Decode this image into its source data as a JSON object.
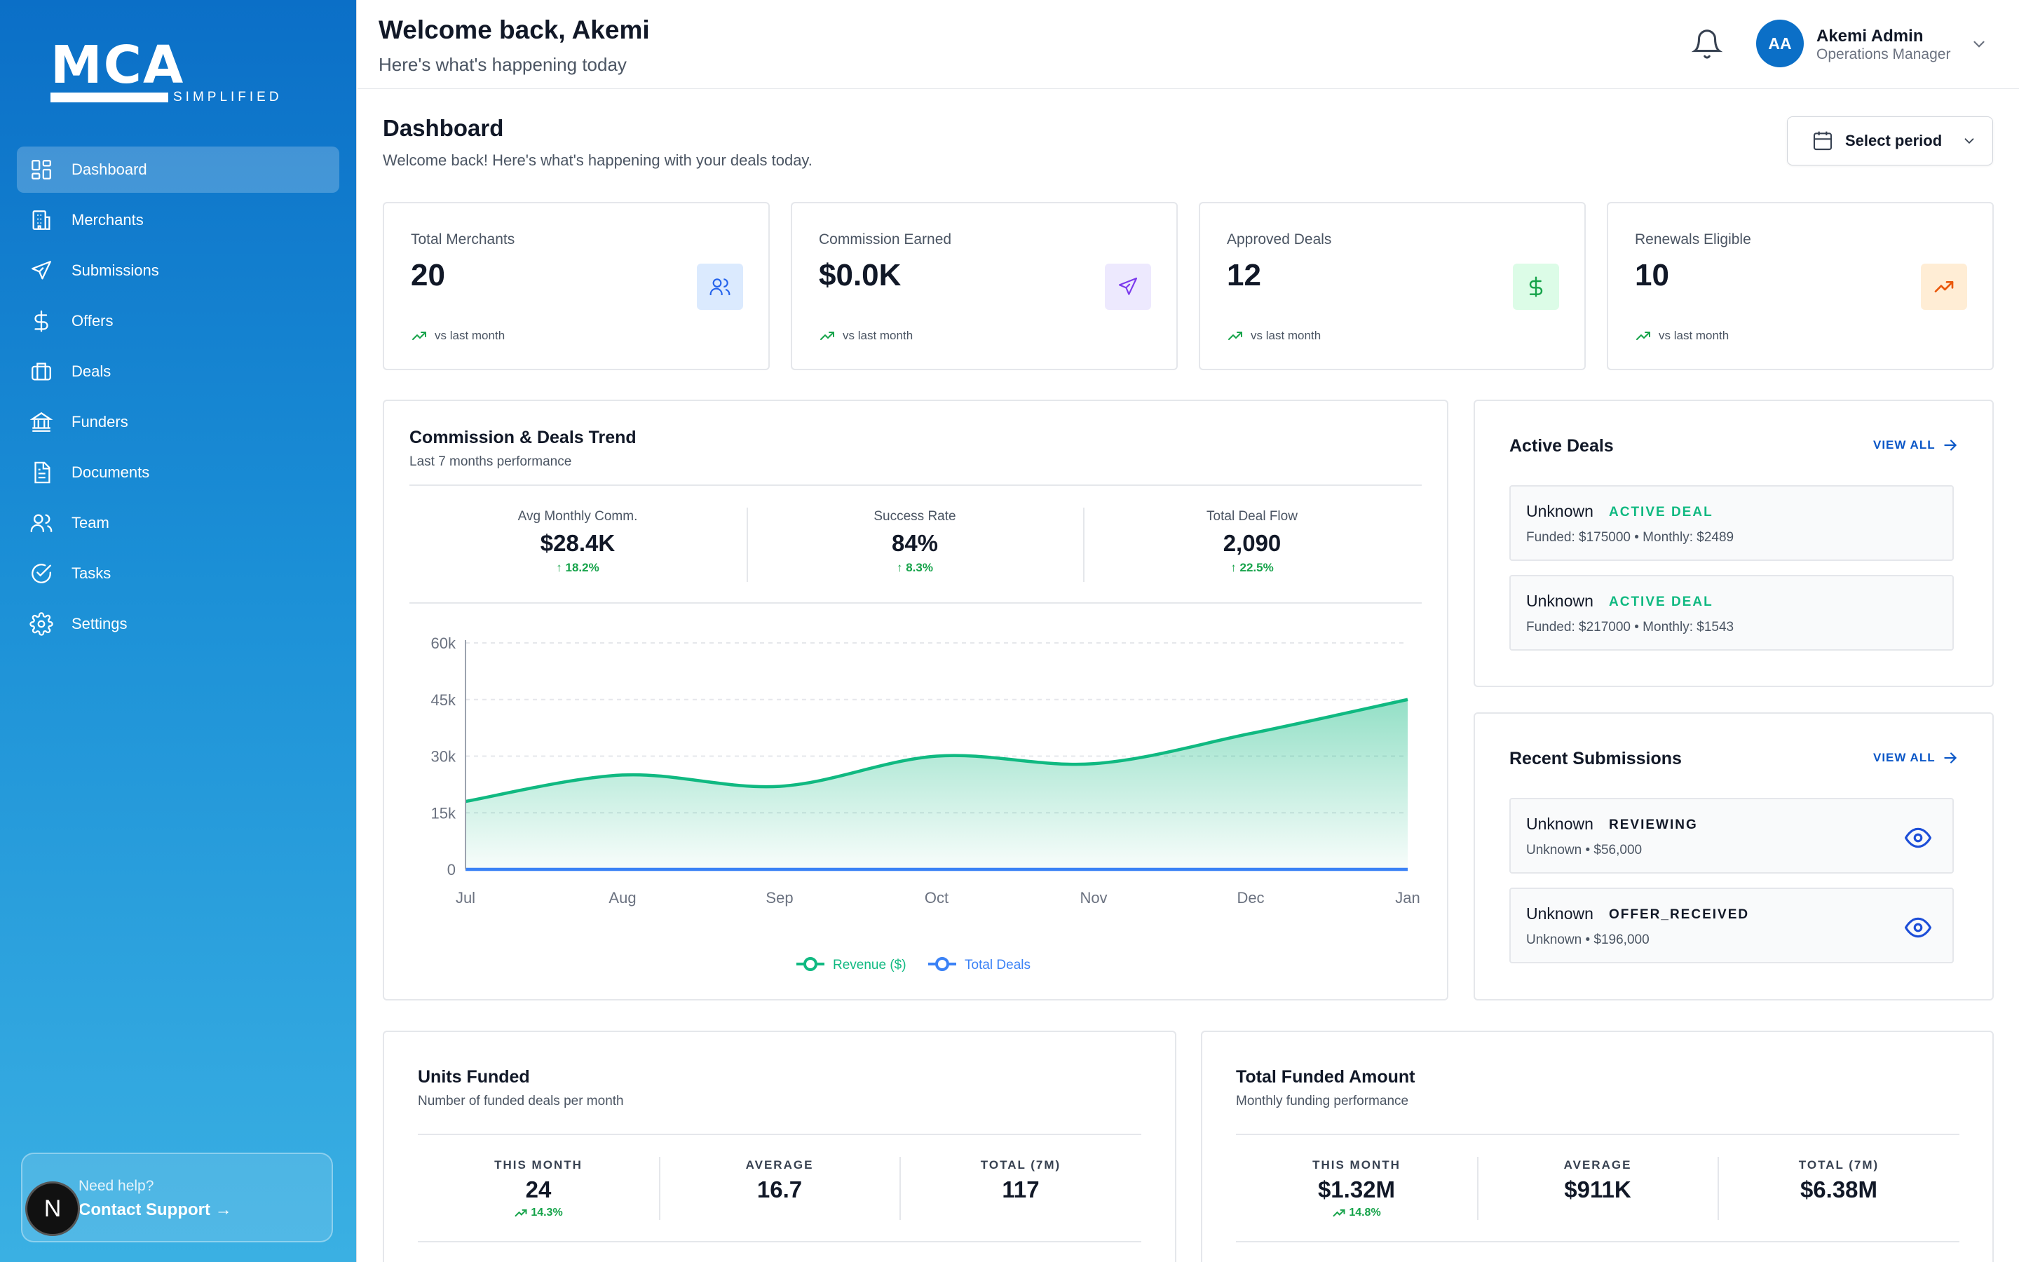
{
  "brand": {
    "name": "MCA",
    "tagline": "SIMPLIFIED"
  },
  "sidebar": {
    "items": [
      {
        "label": "Dashboard",
        "icon": "dashboard-icon",
        "active": true
      },
      {
        "label": "Merchants",
        "icon": "building-icon"
      },
      {
        "label": "Submissions",
        "icon": "send-icon"
      },
      {
        "label": "Offers",
        "icon": "dollar-icon"
      },
      {
        "label": "Deals",
        "icon": "briefcase-icon"
      },
      {
        "label": "Funders",
        "icon": "bank-icon"
      },
      {
        "label": "Documents",
        "icon": "document-icon"
      },
      {
        "label": "Team",
        "icon": "users-icon"
      },
      {
        "label": "Tasks",
        "icon": "check-circle-icon"
      },
      {
        "label": "Settings",
        "icon": "gear-icon"
      }
    ],
    "support": {
      "question": "Need help?",
      "link": "Contact Support →"
    },
    "badge": "N"
  },
  "header": {
    "welcome": "Welcome back, Akemi",
    "subtitle": "Here's what's happening today",
    "user": {
      "initials": "AA",
      "name": "Akemi Admin",
      "role": "Operations Manager"
    }
  },
  "page": {
    "title": "Dashboard",
    "subtitle": "Welcome back! Here's what's happening with your deals today.",
    "period_label": "Select period"
  },
  "stats": [
    {
      "label": "Total Merchants",
      "value": "20",
      "trend": "vs last month",
      "icon": "users-icon",
      "bg": "#dbeafe",
      "fg": "#2563eb"
    },
    {
      "label": "Commission Earned",
      "value": "$0.0K",
      "trend": "vs last month",
      "icon": "send-icon",
      "bg": "#ede9fe",
      "fg": "#7c3aed"
    },
    {
      "label": "Approved Deals",
      "value": "12",
      "trend": "vs last month",
      "icon": "dollar-icon",
      "bg": "#dcfce7",
      "fg": "#16a34a"
    },
    {
      "label": "Renewals Eligible",
      "value": "10",
      "trend": "vs last month",
      "icon": "trending-up-icon",
      "bg": "#ffedd5",
      "fg": "#ea580c"
    }
  ],
  "trend": {
    "title": "Commission & Deals Trend",
    "subtitle": "Last 7 months performance",
    "metrics": [
      {
        "label": "Avg Monthly Comm.",
        "value": "$28.4K",
        "change": "↑ 18.2%"
      },
      {
        "label": "Success Rate",
        "value": "84%",
        "change": "↑ 8.3%"
      },
      {
        "label": "Total Deal Flow",
        "value": "2,090",
        "change": "↑ 22.5%"
      }
    ]
  },
  "chart_data": {
    "type": "area",
    "x": [
      "Jul",
      "Aug",
      "Sep",
      "Oct",
      "Nov",
      "Dec",
      "Jan"
    ],
    "y_ticks": [
      "0",
      "15k",
      "30k",
      "45k",
      "60k"
    ],
    "ylim": [
      0,
      60000
    ],
    "grid": true,
    "legend_position": "bottom-center",
    "series": [
      {
        "name": "Revenue ($)",
        "values": [
          18000,
          25000,
          22000,
          30000,
          28000,
          36000,
          45000
        ],
        "color": "#10b981"
      },
      {
        "name": "Total Deals",
        "values": [
          0,
          0,
          0,
          0,
          0,
          0,
          0
        ],
        "color": "#3b82f6"
      }
    ]
  },
  "active_deals": {
    "title": "Active Deals",
    "view_all": "VIEW ALL",
    "items": [
      {
        "name": "Unknown",
        "status": "ACTIVE DEAL",
        "meta": "Funded: $175000 • Monthly: $2489"
      },
      {
        "name": "Unknown",
        "status": "ACTIVE DEAL",
        "meta": "Funded: $217000 • Monthly: $1543"
      }
    ]
  },
  "recent_submissions": {
    "title": "Recent Submissions",
    "view_all": "VIEW ALL",
    "items": [
      {
        "name": "Unknown",
        "status": "REVIEWING",
        "meta": "Unknown • $56,000"
      },
      {
        "name": "Unknown",
        "status": "OFFER_RECEIVED",
        "meta": "Unknown • $196,000"
      }
    ]
  },
  "units_funded": {
    "title": "Units Funded",
    "subtitle": "Number of funded deals per month",
    "metrics": [
      {
        "label": "THIS MONTH",
        "value": "24",
        "change": "14.3%"
      },
      {
        "label": "AVERAGE",
        "value": "16.7"
      },
      {
        "label": "TOTAL (7M)",
        "value": "117"
      }
    ]
  },
  "total_funded": {
    "title": "Total Funded Amount",
    "subtitle": "Monthly funding performance",
    "metrics": [
      {
        "label": "THIS MONTH",
        "value": "$1.32M",
        "change": "14.8%"
      },
      {
        "label": "AVERAGE",
        "value": "$911K"
      },
      {
        "label": "TOTAL (7M)",
        "value": "$6.38M"
      }
    ]
  }
}
